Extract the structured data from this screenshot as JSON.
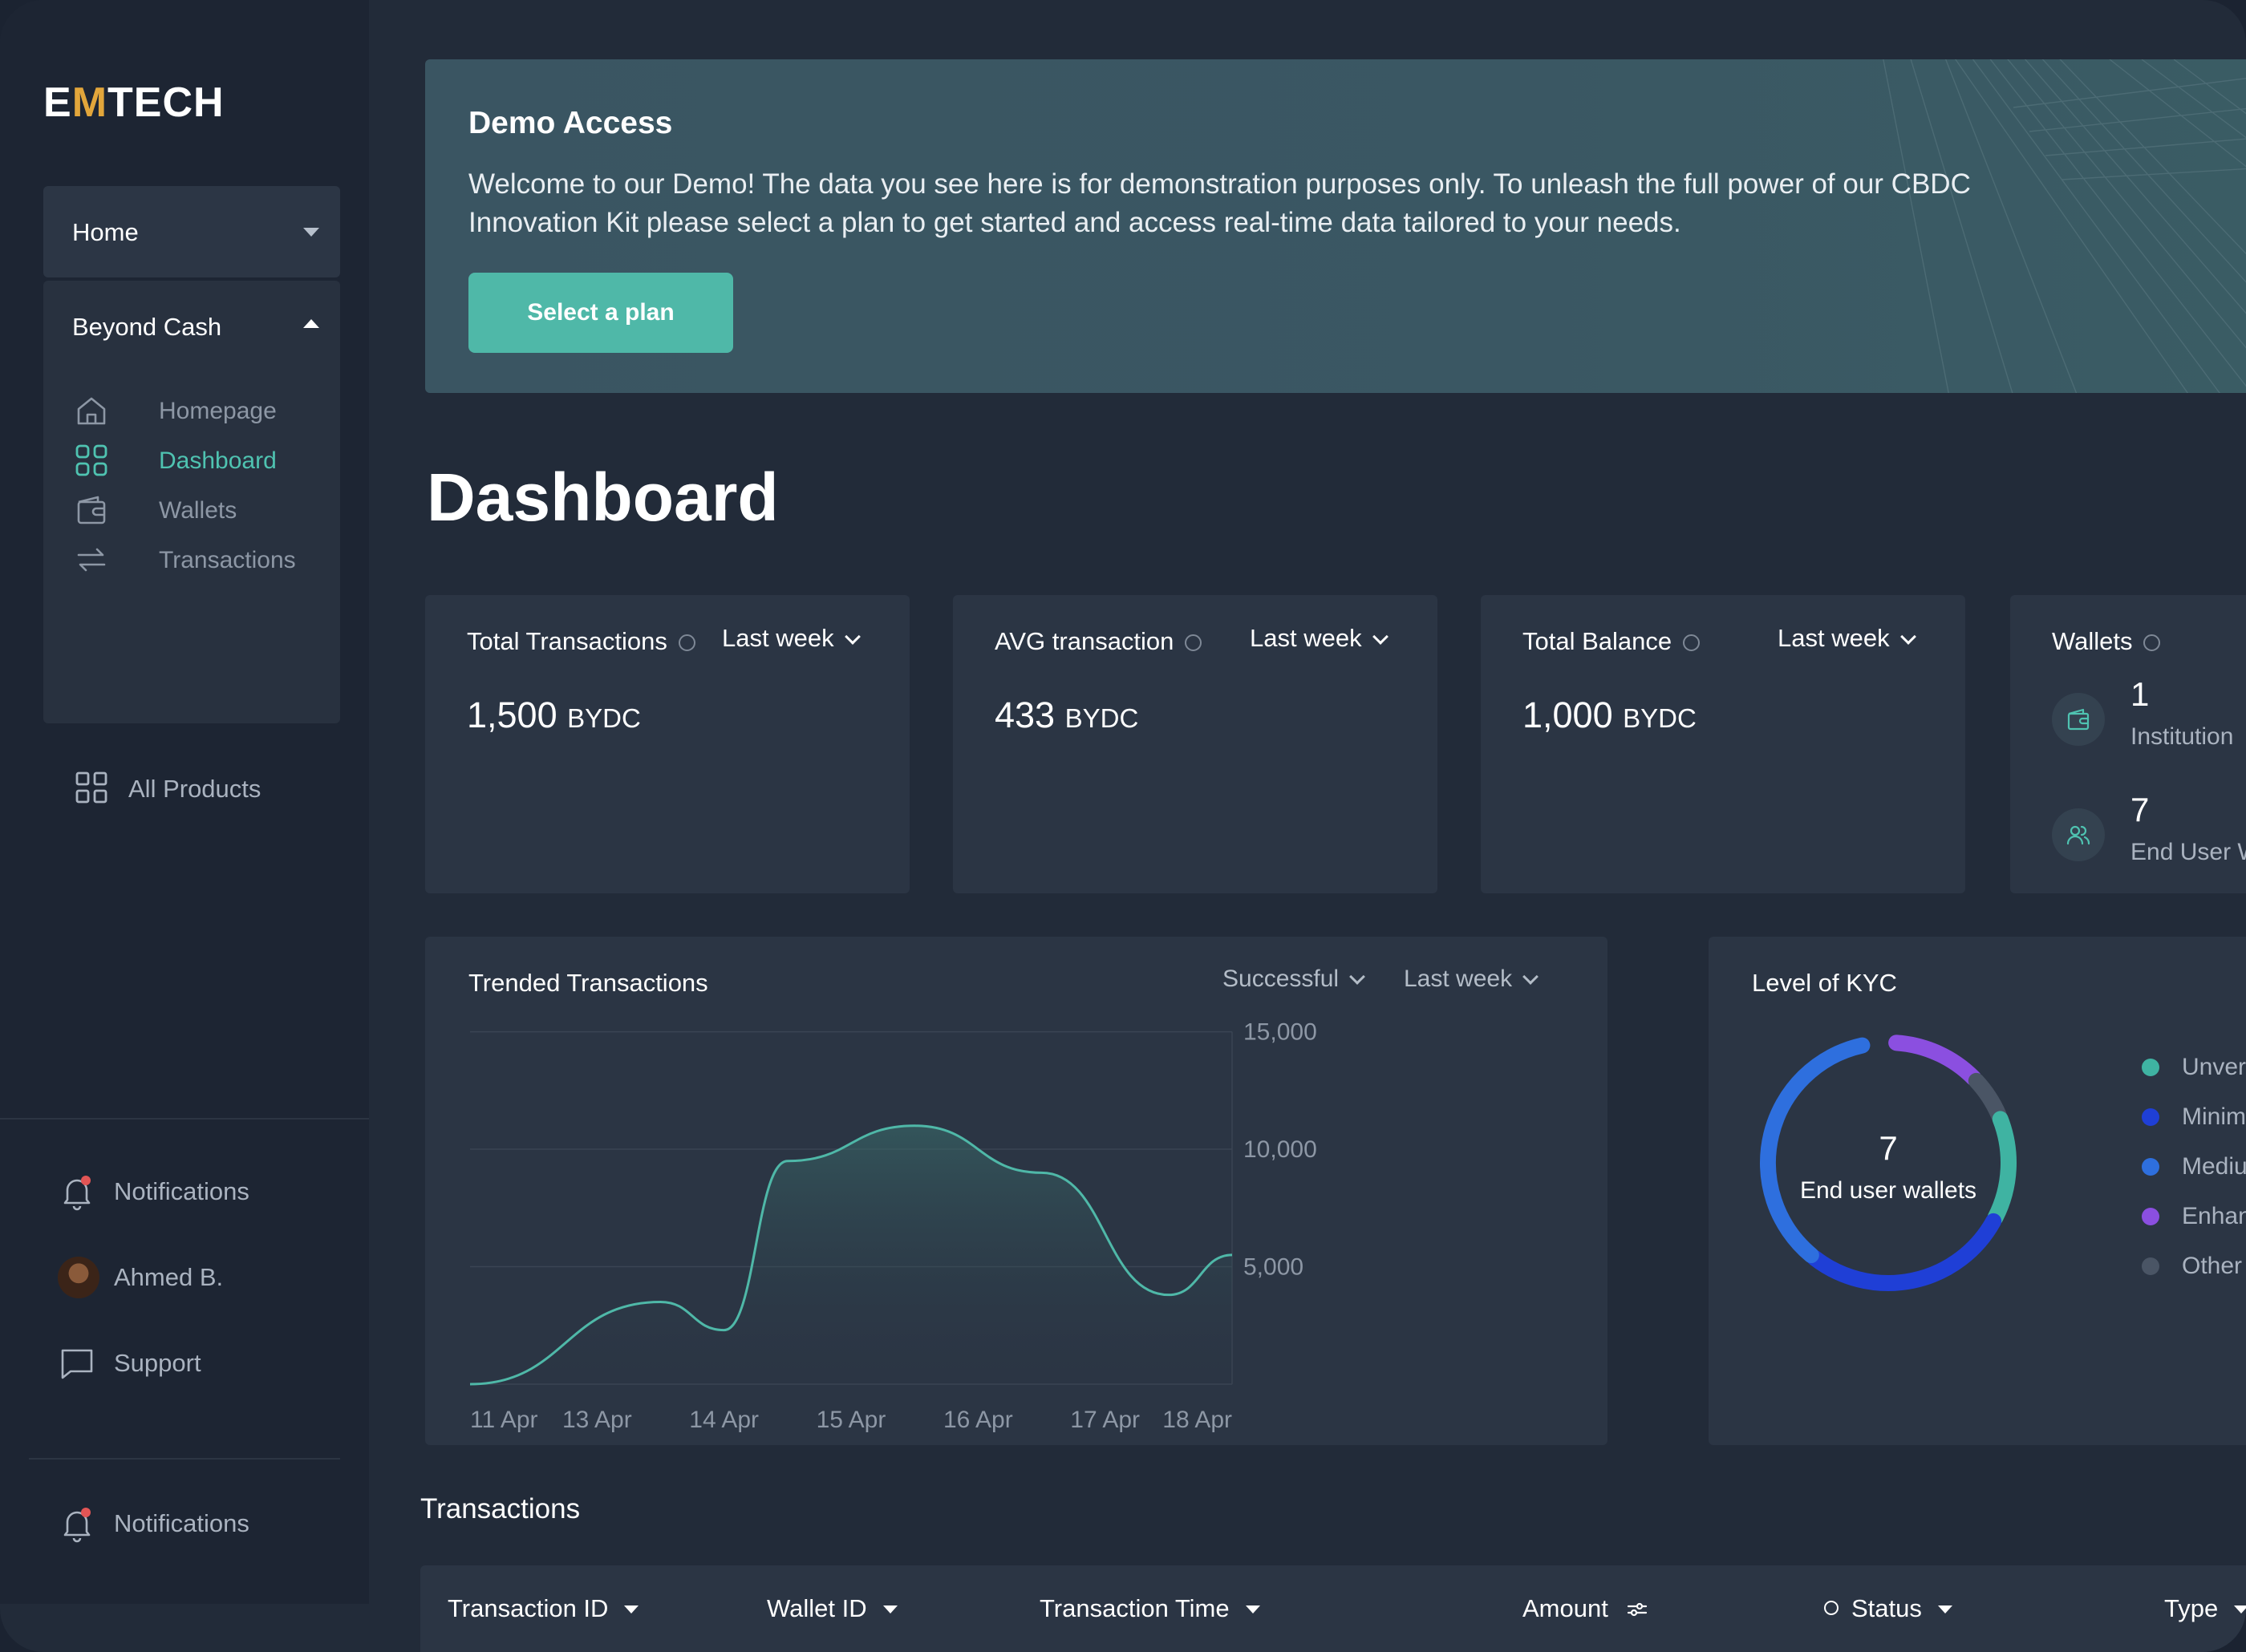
{
  "app": {
    "logo_prefix": "E",
    "logo_accent": "M",
    "logo_suffix": "TECH"
  },
  "sidebar": {
    "home_label": "Home",
    "group_label": "Beyond Cash",
    "group_items": [
      {
        "label": "Homepage",
        "icon": "home-icon"
      },
      {
        "label": "Dashboard",
        "icon": "grid-icon",
        "active": true
      },
      {
        "label": "Wallets",
        "icon": "wallet-icon"
      },
      {
        "label": "Transactions",
        "icon": "transfer-icon"
      }
    ],
    "all_products": "All Products",
    "bottom": {
      "notifications": "Notifications",
      "user": "Ahmed B.",
      "support": "Support",
      "notifications_2": "Notifications"
    }
  },
  "banner": {
    "title": "Demo Access",
    "text": "Welcome to our Demo! The data you see here is for demonstration purposes only. To unleash the full power of our CBDC Innovation Kit please select a plan to get started and access real-time data tailored to your needs.",
    "button": "Select a plan"
  },
  "page_title": "Dashboard",
  "stats": [
    {
      "title": "Total Transactions",
      "period": "Last week",
      "value": "1,500",
      "unit": "BYDC"
    },
    {
      "title": "AVG transaction",
      "period": "Last week",
      "value": "433",
      "unit": "BYDC"
    },
    {
      "title": "Total Balance",
      "period": "Last week",
      "value": "1,000",
      "unit": "BYDC"
    }
  ],
  "wallets": {
    "title": "Wallets",
    "rows": [
      {
        "count": "1",
        "label": "Institution"
      },
      {
        "count": "7",
        "label": "End User W"
      }
    ]
  },
  "trended": {
    "title": "Trended Transactions",
    "filter_status": "Successful",
    "filter_period": "Last week"
  },
  "chart_data": {
    "type": "area",
    "title": "Trended Transactions",
    "x": [
      "11 Apr",
      "13 Apr",
      "14 Apr",
      "15 Apr",
      "16 Apr",
      "17 Apr",
      "18 Apr"
    ],
    "ytick_labels": [
      "15,000",
      "10,000",
      "5,000"
    ],
    "yticks": [
      15000,
      10000,
      5000
    ],
    "ylim": [
      0,
      17000
    ],
    "points": [
      {
        "x": 0.0,
        "y": 0
      },
      {
        "x": 1.5,
        "y": 3500
      },
      {
        "x": 2.0,
        "y": 2300
      },
      {
        "x": 2.5,
        "y": 9500
      },
      {
        "x": 3.5,
        "y": 11000
      },
      {
        "x": 4.5,
        "y": 9000
      },
      {
        "x": 5.5,
        "y": 3800
      },
      {
        "x": 6.0,
        "y": 5500
      }
    ],
    "grid": true
  },
  "kyc": {
    "title": "Level of KYC",
    "center_value": "7",
    "center_label": "End user wallets",
    "segments": [
      {
        "label": "Unverified",
        "display": "Unver",
        "color": "#3fb3a2",
        "fraction": 0.14
      },
      {
        "label": "Minimum",
        "display": "Minim",
        "color": "#1f3fd6",
        "fraction": 0.28
      },
      {
        "label": "Medium",
        "display": "Mediu",
        "color": "#2e6fde",
        "fraction": 0.36
      },
      {
        "label": "Enhanced",
        "display": "Enhan",
        "color": "#8b4fe0",
        "fraction": 0.12
      },
      {
        "label": "Other",
        "display": "Other",
        "color": "#4a5565",
        "fraction": 0.06
      }
    ]
  },
  "transactions": {
    "title": "Transactions",
    "columns": [
      "Transaction ID",
      "Wallet ID",
      "Transaction Time",
      "Amount",
      "Status",
      "Type"
    ]
  }
}
